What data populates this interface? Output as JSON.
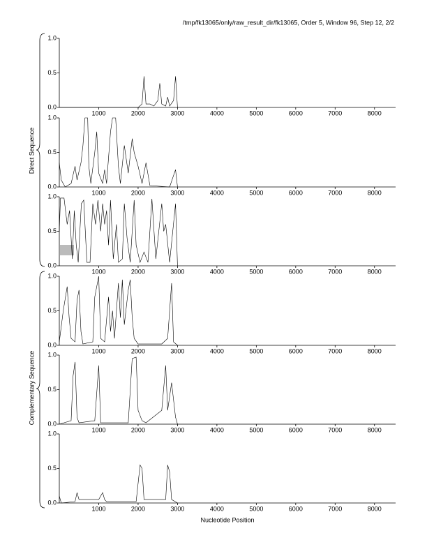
{
  "page": {
    "title": "/tmp/fk13065/only/raw_result_dir/fk13065, Order 5, Window 96, Step 12, 2/2",
    "xlabel": "Nucleotide Position",
    "group_labels": [
      "Direct Sequence",
      "Complementary Sequence"
    ]
  },
  "chart_data": [
    {
      "type": "line",
      "xlim": [
        0,
        8500
      ],
      "ylim": [
        0,
        1
      ],
      "xticks": [
        1000,
        2000,
        3000,
        4000,
        5000,
        6000,
        7000,
        8000
      ],
      "yticks": [
        {
          "value": 0,
          "label": "0.0"
        },
        0.5,
        {
          "value": 1,
          "label": "1.0"
        }
      ],
      "color": "#000000",
      "x": [
        0,
        2000,
        2100,
        2150,
        2200,
        2300,
        2400,
        2500,
        2550,
        2600,
        2700,
        2750,
        2800,
        2900,
        2950,
        3000
      ],
      "values": [
        0,
        0,
        0.05,
        0.45,
        0.05,
        0.05,
        0.02,
        0.1,
        0.35,
        0.05,
        0.02,
        0.15,
        0.02,
        0.1,
        0.45,
        0
      ]
    },
    {
      "type": "line",
      "xlim": [
        0,
        8500
      ],
      "ylim": [
        0,
        1
      ],
      "xticks": [
        1000,
        2000,
        3000,
        4000,
        5000,
        6000,
        7000,
        8000
      ],
      "yticks": [
        {
          "value": 0,
          "label": "0.0"
        },
        0.5,
        {
          "value": 1,
          "label": "1.0"
        }
      ],
      "color": "#000000",
      "x": [
        0,
        50,
        150,
        300,
        400,
        450,
        550,
        600,
        650,
        720,
        750,
        800,
        900,
        950,
        1000,
        1100,
        1150,
        1200,
        1300,
        1350,
        1430,
        1500,
        1550,
        1650,
        1750,
        1850,
        1900,
        2000,
        2100,
        2200,
        2300,
        2800,
        2950,
        3000
      ],
      "values": [
        0.35,
        0.1,
        0,
        0.05,
        0.3,
        0.1,
        0.35,
        0.6,
        1,
        1,
        0.3,
        0.05,
        0.5,
        0.8,
        0.2,
        0.05,
        0.25,
        0.05,
        0.8,
        1,
        1,
        0.3,
        0.05,
        0.6,
        0.2,
        0.7,
        0.5,
        0.3,
        0.05,
        0.35,
        0.02,
        0,
        0.25,
        0
      ]
    },
    {
      "type": "line",
      "xlim": [
        0,
        8500
      ],
      "ylim": [
        0,
        1
      ],
      "xticks": [
        1000,
        2000,
        3000,
        4000,
        5000,
        6000,
        7000,
        8000
      ],
      "yticks": [
        {
          "value": 0,
          "label": "0.0"
        },
        0.5,
        {
          "value": 1,
          "label": "1.0"
        }
      ],
      "color": "#000000",
      "x": [
        0,
        30,
        120,
        200,
        260,
        330,
        380,
        430,
        480,
        560,
        620,
        700,
        780,
        850,
        920,
        980,
        1050,
        1100,
        1150,
        1200,
        1250,
        1300,
        1370,
        1450,
        1500,
        1600,
        1650,
        1720,
        1800,
        1900,
        1950,
        2050,
        2150,
        2250,
        2350,
        2450,
        2600,
        2650,
        2700,
        2800,
        2950,
        3000
      ],
      "values": [
        0.5,
        0.98,
        0.98,
        0.6,
        0.8,
        0.1,
        0.8,
        0.3,
        0.05,
        0.9,
        0.95,
        0.05,
        0.05,
        0.9,
        0.6,
        0.95,
        0.5,
        0.9,
        0.6,
        0.8,
        0.3,
        0.95,
        0.1,
        0.6,
        0.05,
        0.1,
        0.9,
        0.4,
        0.05,
        0.95,
        0.3,
        0.05,
        0.2,
        0.05,
        0.97,
        0.1,
        0.9,
        0.5,
        0.6,
        0.05,
        0.9,
        0
      ]
    },
    {
      "type": "line",
      "xlim": [
        0,
        8500
      ],
      "ylim": [
        0,
        1
      ],
      "xticks": [
        1000,
        2000,
        3000,
        4000,
        5000,
        6000,
        7000,
        8000
      ],
      "yticks": [
        {
          "value": 0,
          "label": "0.0"
        },
        0.5,
        {
          "value": 1,
          "label": "1.0"
        }
      ],
      "color": "#000000",
      "x": [
        0,
        100,
        200,
        250,
        300,
        400,
        450,
        500,
        550,
        600,
        850,
        900,
        1000,
        1050,
        1150,
        1250,
        1300,
        1350,
        1400,
        1500,
        1550,
        1600,
        1650,
        1750,
        1800,
        1850,
        1900,
        2000,
        2600,
        2750,
        2850,
        2900,
        3000
      ],
      "values": [
        0.05,
        0.5,
        0.85,
        0.4,
        0.1,
        0.05,
        0.65,
        0.8,
        0.2,
        0.02,
        0.05,
        0.7,
        1,
        0.1,
        0.05,
        0.7,
        0.2,
        0.5,
        0.1,
        0.9,
        0.4,
        0.95,
        0.3,
        0.8,
        0.95,
        0.4,
        0.1,
        0.02,
        0.02,
        0.1,
        0.9,
        0.05,
        0
      ]
    },
    {
      "type": "line",
      "xlim": [
        0,
        8500
      ],
      "ylim": [
        0,
        1
      ],
      "xticks": [
        1000,
        2000,
        3000,
        4000,
        5000,
        6000,
        7000,
        8000
      ],
      "yticks": [
        {
          "value": 0,
          "label": "0.0"
        },
        0.5,
        {
          "value": 1,
          "label": "1.0"
        }
      ],
      "color": "#000000",
      "x": [
        0,
        300,
        350,
        400,
        450,
        500,
        900,
        1000,
        1050,
        1750,
        1850,
        1950,
        2000,
        2100,
        2200,
        2600,
        2700,
        2750,
        2850,
        2950,
        3000
      ],
      "values": [
        0,
        0.05,
        0.7,
        0.9,
        0.1,
        0.02,
        0.05,
        0.85,
        0.02,
        0.02,
        0.95,
        0.97,
        0.2,
        0.05,
        0.02,
        0.2,
        0.85,
        0.2,
        0.6,
        0.1,
        0
      ]
    },
    {
      "type": "line",
      "xlim": [
        0,
        8500
      ],
      "ylim": [
        0,
        1
      ],
      "xticks": [
        1000,
        2000,
        3000,
        4000,
        5000,
        6000,
        7000,
        8000
      ],
      "yticks": [
        {
          "value": 0,
          "label": "0.0"
        },
        0.5,
        {
          "value": 1,
          "label": "1.0"
        }
      ],
      "color": "#000000",
      "x": [
        0,
        50,
        400,
        450,
        500,
        1000,
        1100,
        1150,
        1200,
        1950,
        2050,
        2100,
        2150,
        2700,
        2750,
        2800,
        2850,
        3000
      ],
      "values": [
        0.1,
        0,
        0.02,
        0.15,
        0.05,
        0.05,
        0.15,
        0.05,
        0.02,
        0.02,
        0.55,
        0.5,
        0.05,
        0.05,
        0.55,
        0.45,
        0.05,
        0
      ]
    }
  ]
}
